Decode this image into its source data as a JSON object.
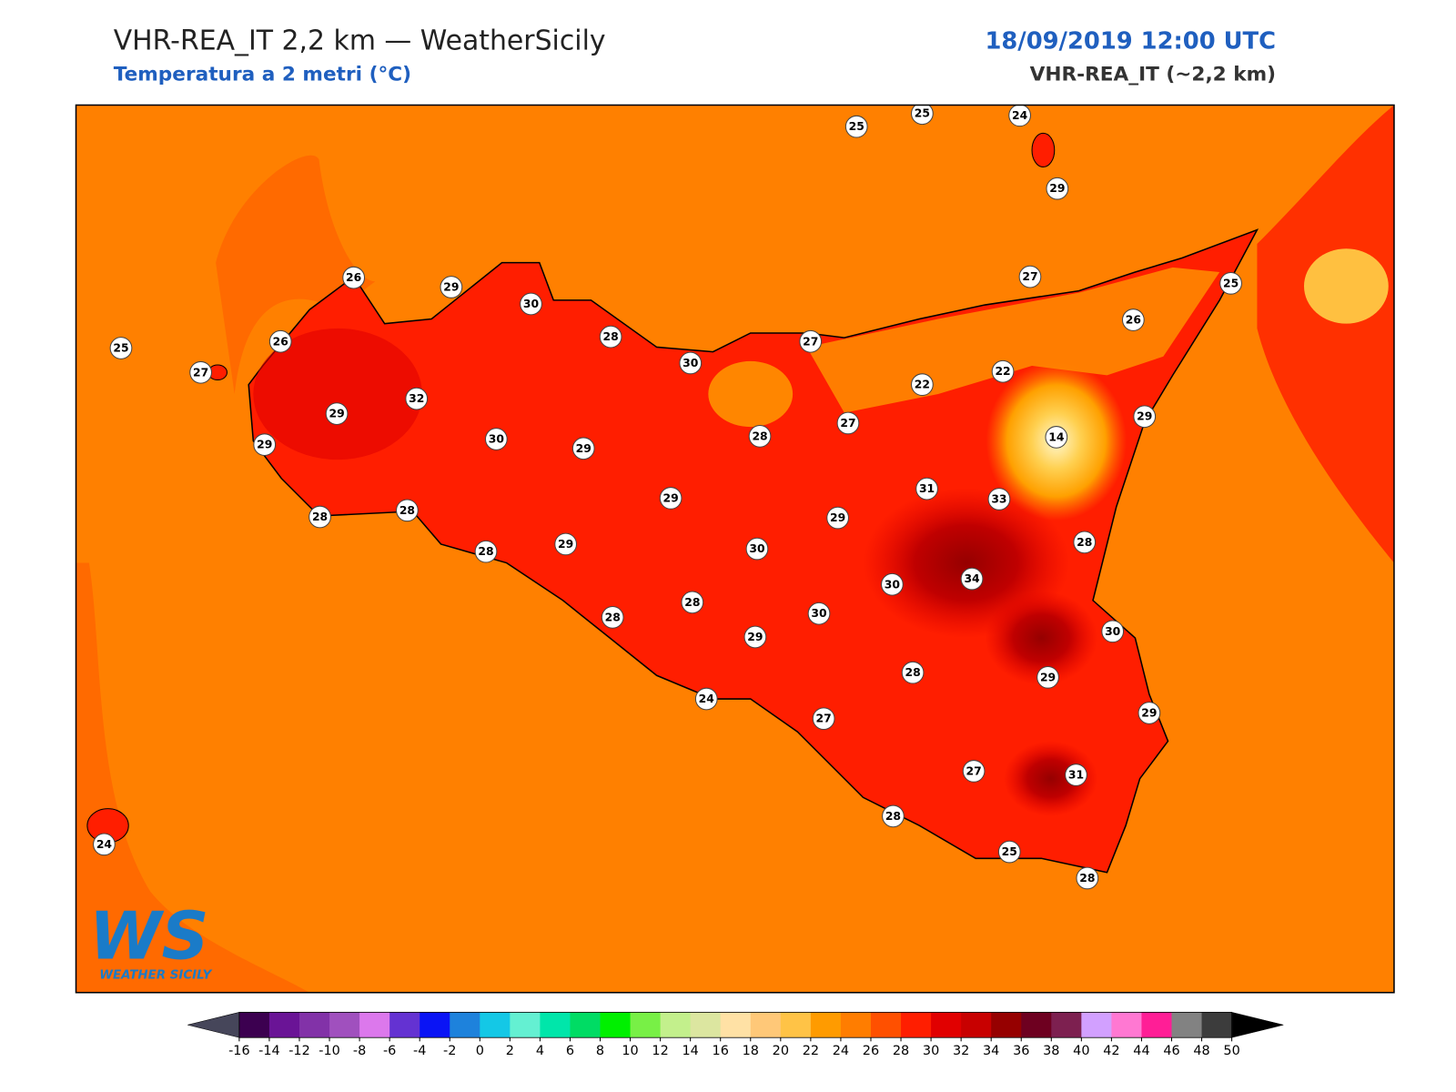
{
  "header": {
    "title": "VHR-REA_IT 2,2 km — WeatherSicily",
    "subtitle": "Temperatura a 2 metri (°C)",
    "datetime": "18/09/2019 12:00 UTC",
    "model": "VHR-REA_IT (~2,2 km)"
  },
  "map": {
    "stations": [
      25,
      25,
      24,
      29,
      26,
      29,
      30,
      25,
      26,
      27,
      28,
      30,
      27,
      27,
      25,
      26,
      22,
      22,
      32,
      29,
      29,
      30,
      29,
      28,
      27,
      29,
      14,
      31,
      33,
      29,
      29,
      28,
      28,
      28,
      29,
      30,
      28,
      30,
      34,
      28,
      28,
      30,
      29,
      30,
      28,
      29,
      24,
      27,
      29,
      27,
      31,
      28,
      25,
      28,
      24
    ]
  },
  "logo": {
    "mark": "WS",
    "text": "WEATHER SICILY"
  },
  "colorbar": {
    "ticks": [
      -16,
      -14,
      -12,
      -10,
      -8,
      -6,
      -4,
      -2,
      0,
      2,
      4,
      6,
      8,
      10,
      12,
      14,
      16,
      18,
      20,
      22,
      24,
      26,
      28,
      30,
      32,
      34,
      36,
      38,
      40,
      42,
      44,
      46,
      48,
      50
    ],
    "colors": [
      "#3c0050",
      "#6a1496",
      "#8232a8",
      "#a050be",
      "#dc78ec",
      "#6432d2",
      "#0a14f5",
      "#1e82dc",
      "#14c8e6",
      "#64f0d2",
      "#00e6aa",
      "#00dc64",
      "#00f000",
      "#78f046",
      "#c3f08c",
      "#dce6a0",
      "#ffe1a5",
      "#ffc878",
      "#ffc346",
      "#ff9b00",
      "#ff7d00",
      "#ff5000",
      "#ff1e00",
      "#e10000",
      "#c80000",
      "#960000",
      "#6e0020",
      "#7d2050",
      "#d2a0ff",
      "#ff78d2",
      "#ff1e96",
      "#828282",
      "#3c3c3c"
    ],
    "under": "#46465a",
    "over": "#000000"
  }
}
